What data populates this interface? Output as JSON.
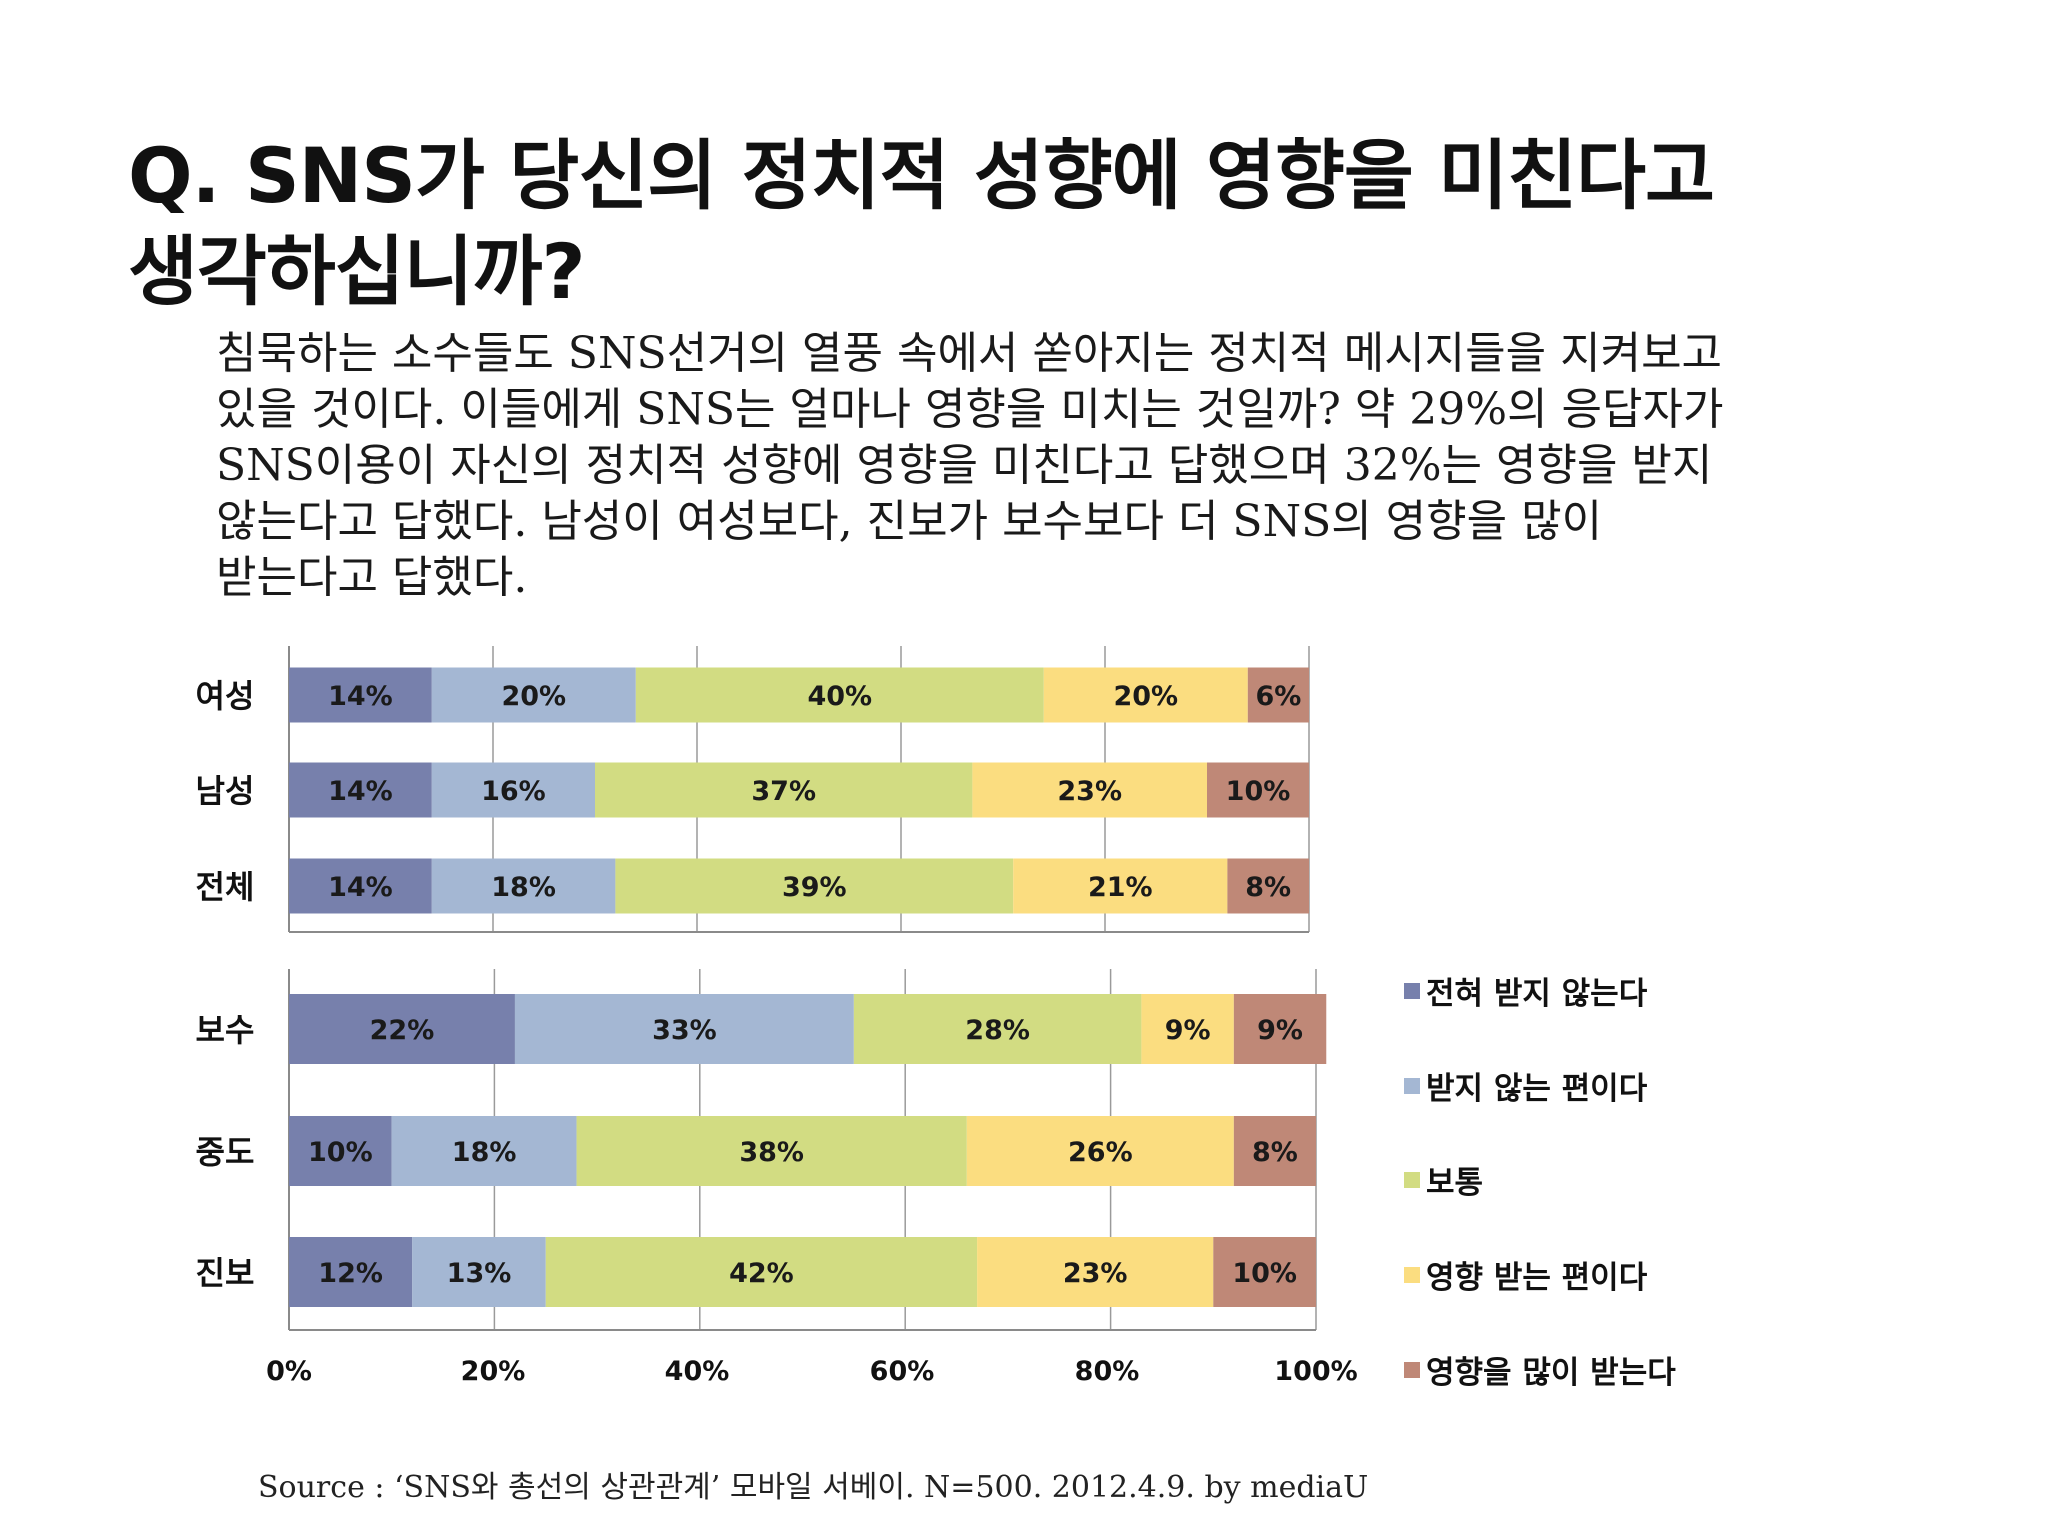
{
  "title": {
    "line1": "Q. SNS가 당신의 정치적 성향에 영향을 미친다고",
    "line2": "생각하십니까?"
  },
  "body": {
    "lines": [
      "침묵하는 소수들도 SNS선거의 열풍 속에서 쏟아지는 정치적 메시지들을 지켜보고",
      "있을 것이다. 이들에게 SNS는 얼마나 영향을 미치는 것일까? 약 29%의 응답자가",
      "SNS이용이 자신의 정치적 성향에 영향을 미친다고 답했으며 32%는 영향을 받지",
      "않는다고 답했다. 남성이 여성보다, 진보가 보수보다 더 SNS의 영향을 많이",
      "받는다고 답했다."
    ]
  },
  "source": "Source : ‘SNS와 총선의 상관관계’ 모바일 서베이. N=500. 2012.4.9. by mediaU",
  "chart_data": {
    "type": "bar",
    "orientation": "horizontal",
    "stacked": true,
    "normalized": true,
    "xlim": [
      0,
      100
    ],
    "xticks": [
      "0%",
      "20%",
      "40%",
      "60%",
      "80%",
      "100%"
    ],
    "grid": true,
    "legend_position": "right",
    "series": [
      {
        "name": "전혀 받지 않는다",
        "color": "#7780ac"
      },
      {
        "name": "받지 않는 편이다",
        "color": "#a4b7d3"
      },
      {
        "name": "보통",
        "color": "#d2dc82"
      },
      {
        "name": "영향 받는 편이다",
        "color": "#fbdd80"
      },
      {
        "name": "영향을 많이 받는다",
        "color": "#bf8877"
      }
    ],
    "groups": [
      {
        "categories": [
          "여성",
          "남성",
          "전체"
        ],
        "values": [
          [
            14,
            20,
            40,
            20,
            6
          ],
          [
            14,
            16,
            37,
            23,
            10
          ],
          [
            14,
            18,
            39,
            21,
            8
          ]
        ]
      },
      {
        "categories": [
          "보수",
          "중도",
          "진보"
        ],
        "values": [
          [
            22,
            33,
            28,
            9,
            9
          ],
          [
            10,
            18,
            38,
            26,
            8
          ],
          [
            12,
            13,
            42,
            23,
            10
          ]
        ]
      }
    ]
  }
}
